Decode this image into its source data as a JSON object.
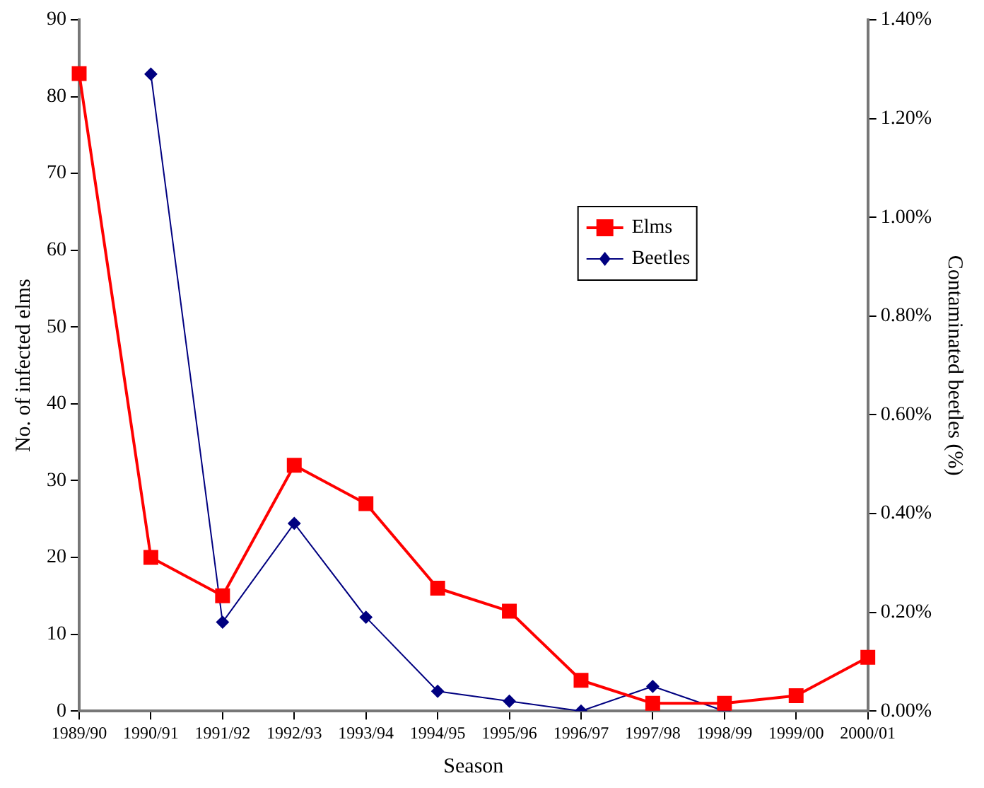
{
  "chart_data": {
    "type": "line",
    "xlabel": "Season",
    "ylabel": "No. of infected elms",
    "y2label": "Contaminated beetles (%)",
    "categories": [
      "1989/90",
      "1990/91",
      "1991/92",
      "1992/93",
      "1993/94",
      "1994/95",
      "1995/96",
      "1996/97",
      "1997/98",
      "1998/99",
      "1999/00",
      "2000/01"
    ],
    "series": [
      {
        "name": "Elms",
        "color": "#ff0000",
        "marker": "square",
        "values": [
          83,
          20,
          15,
          32,
          27,
          16,
          13,
          4,
          1,
          1,
          2,
          7
        ]
      },
      {
        "name": "Beetles",
        "color": "#000080",
        "marker": "diamond",
        "axis": "y2",
        "values": [
          null,
          1.29,
          0.18,
          0.38,
          0.19,
          0.04,
          0.02,
          0,
          0.05,
          0,
          null,
          null
        ]
      }
    ],
    "ylim": [
      0,
      90
    ],
    "yticks": [
      0,
      10,
      20,
      30,
      40,
      50,
      60,
      70,
      80,
      90
    ],
    "y2lim": [
      0,
      1.4
    ],
    "y2ticks": [
      {
        "value": 0,
        "label": "0.00%"
      },
      {
        "value": 0.2,
        "label": "0.20%"
      },
      {
        "value": 0.4,
        "label": "0.40%"
      },
      {
        "value": 0.6,
        "label": "0.60%"
      },
      {
        "value": 0.8,
        "label": "0.80%"
      },
      {
        "value": 1.0,
        "label": "1.00%"
      },
      {
        "value": 1.2,
        "label": "1.20%"
      },
      {
        "value": 1.4,
        "label": "1.40%"
      }
    ],
    "grid": false,
    "legend": "right",
    "line_style": "solid"
  }
}
